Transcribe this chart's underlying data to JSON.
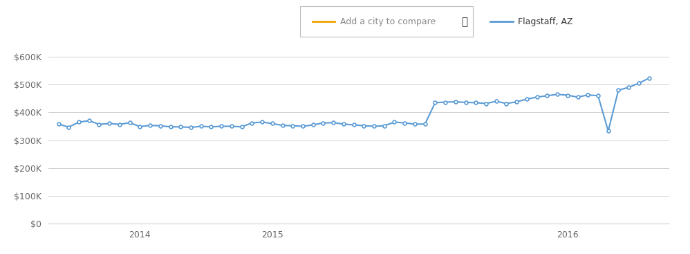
{
  "flagstaff_data": [
    [
      0,
      358000
    ],
    [
      1,
      347000
    ],
    [
      2,
      365000
    ],
    [
      3,
      370000
    ],
    [
      4,
      357000
    ],
    [
      5,
      360000
    ],
    [
      6,
      357000
    ],
    [
      7,
      363000
    ],
    [
      8,
      349000
    ],
    [
      9,
      353000
    ],
    [
      10,
      352000
    ],
    [
      11,
      348000
    ],
    [
      12,
      348000
    ],
    [
      13,
      346000
    ],
    [
      14,
      350000
    ],
    [
      15,
      348000
    ],
    [
      16,
      350000
    ],
    [
      17,
      350000
    ],
    [
      18,
      348000
    ],
    [
      19,
      362000
    ],
    [
      20,
      365000
    ],
    [
      21,
      360000
    ],
    [
      22,
      353000
    ],
    [
      23,
      352000
    ],
    [
      24,
      350000
    ],
    [
      25,
      355000
    ],
    [
      26,
      362000
    ],
    [
      27,
      363000
    ],
    [
      28,
      358000
    ],
    [
      29,
      355000
    ],
    [
      30,
      352000
    ],
    [
      31,
      350000
    ],
    [
      32,
      352000
    ],
    [
      33,
      365000
    ],
    [
      34,
      362000
    ],
    [
      35,
      358000
    ],
    [
      36,
      358000
    ],
    [
      37,
      435000
    ],
    [
      38,
      437000
    ],
    [
      39,
      438000
    ],
    [
      40,
      436000
    ],
    [
      41,
      435000
    ],
    [
      42,
      432000
    ],
    [
      43,
      440000
    ],
    [
      44,
      432000
    ],
    [
      45,
      438000
    ],
    [
      46,
      448000
    ],
    [
      47,
      455000
    ],
    [
      48,
      460000
    ],
    [
      49,
      465000
    ],
    [
      50,
      462000
    ],
    [
      51,
      455000
    ],
    [
      52,
      463000
    ],
    [
      53,
      460000
    ],
    [
      54,
      333000
    ],
    [
      55,
      480000
    ],
    [
      56,
      490000
    ],
    [
      57,
      505000
    ],
    [
      58,
      523000
    ]
  ],
  "x_ticks": [
    8,
    21,
    50
  ],
  "x_tick_labels": [
    "2014",
    "2015",
    "2016"
  ],
  "y_ticks": [
    0,
    100000,
    200000,
    300000,
    400000,
    500000,
    600000
  ],
  "line_color": "#5b9bd5",
  "grid_color": "#d0d0d0",
  "bg_color": "#ffffff",
  "legend_flagstaff": "Flagstaff, AZ",
  "legend_compare": "Add a city to compare",
  "compare_color": "#f0a500",
  "ylim": [
    0,
    640000
  ],
  "xlim": [
    -1,
    60
  ]
}
